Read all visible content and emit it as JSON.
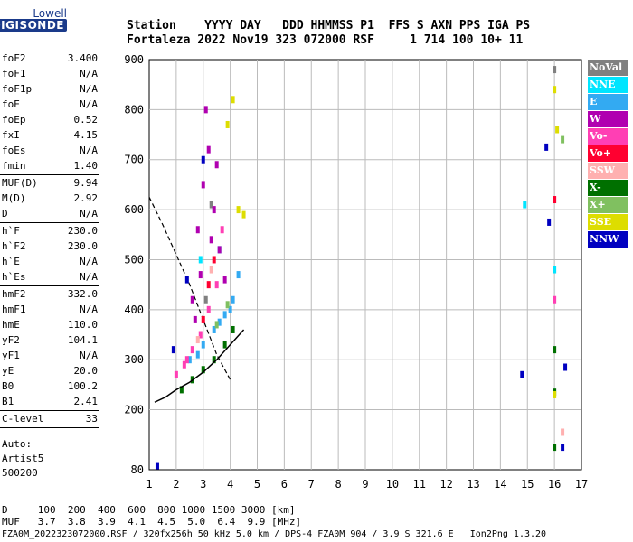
{
  "logo": {
    "line1": "Lowell",
    "line2": "DIGISONDE"
  },
  "header": {
    "line1": "Station    YYYY DAY   DDD HHMMSS P1  FFS S AXN PPS IGA PS",
    "line2": "Fortaleza 2022 Nov19 323 072000 RSF     1 714 100 10+ 11"
  },
  "params": [
    {
      "items": [
        {
          "k": "foF2",
          "v": "3.400"
        },
        {
          "k": "foF1",
          "v": "N/A"
        },
        {
          "k": "foF1p",
          "v": "N/A"
        },
        {
          "k": "foE",
          "v": "N/A"
        },
        {
          "k": "foEp",
          "v": "0.52"
        },
        {
          "k": "fxI",
          "v": "4.15"
        },
        {
          "k": "foEs",
          "v": "N/A"
        },
        {
          "k": "fmin",
          "v": "1.40"
        }
      ]
    },
    {
      "items": [
        {
          "k": "MUF(D)",
          "v": "9.94"
        },
        {
          "k": "M(D)",
          "v": "2.92"
        },
        {
          "k": "D",
          "v": "N/A"
        }
      ]
    },
    {
      "items": [
        {
          "k": "h`F",
          "v": "230.0"
        },
        {
          "k": "h`F2",
          "v": "230.0"
        },
        {
          "k": "h`E",
          "v": "N/A"
        },
        {
          "k": "h`Es",
          "v": "N/A"
        }
      ]
    },
    {
      "items": [
        {
          "k": "hmF2",
          "v": "332.0"
        },
        {
          "k": "hmF1",
          "v": "N/A"
        },
        {
          "k": "hmE",
          "v": "110.0"
        },
        {
          "k": "yF2",
          "v": "104.1"
        },
        {
          "k": "yF1",
          "v": "N/A"
        },
        {
          "k": "yE",
          "v": "20.0"
        },
        {
          "k": "B0",
          "v": "100.2"
        },
        {
          "k": "B1",
          "v": "2.41"
        }
      ]
    },
    {
      "items": [
        {
          "k": "C-level",
          "v": "33"
        }
      ]
    }
  ],
  "footer_info": {
    "line1": "Auto:",
    "line2": "Artist5",
    "line3": "500200"
  },
  "bottom_table": {
    "line1": "D     100  200  400  600  800 1000 1500 3000 [km]",
    "line2": "MUF   3.7  3.8  3.9  4.1  4.5  5.0  6.4  9.9 [MHz]"
  },
  "footer": "FZA0M_2022323072000.RSF / 320fx256h 50 kHz 5.0 km / DPS-4 FZA0M 904 / 3.9 S 321.6 E   Ion2Png 1.3.20",
  "legend": [
    {
      "label": "NoVal",
      "color": "#808080"
    },
    {
      "label": "NNE",
      "color": "#00e5ff"
    },
    {
      "label": "E",
      "color": "#33aaf2"
    },
    {
      "label": "W",
      "color": "#b000b0"
    },
    {
      "label": "Vo-",
      "color": "#ff3fb4"
    },
    {
      "label": "Vo+",
      "color": "#ff0030"
    },
    {
      "label": "SSW",
      "color": "#ffb0b0"
    },
    {
      "label": "X-",
      "color": "#007000"
    },
    {
      "label": "X+",
      "color": "#80c060"
    },
    {
      "label": "SSE",
      "color": "#dddd00"
    },
    {
      "label": "NNW",
      "color": "#0000c0"
    }
  ],
  "chart_data": {
    "type": "scatter",
    "xlim": [
      1,
      17
    ],
    "ylim": [
      80,
      900
    ],
    "x_ticks": [
      1,
      2,
      3,
      4,
      5,
      6,
      7,
      8,
      9,
      10,
      11,
      12,
      13,
      14,
      15,
      16,
      17
    ],
    "y_ticks": [
      80,
      200,
      300,
      400,
      500,
      600,
      700,
      800,
      900
    ],
    "grid": true,
    "legend_position": "right",
    "series": [
      {
        "name": "NoVal",
        "color": "#808080",
        "points": [
          [
            3.1,
            420
          ],
          [
            3.3,
            610
          ],
          [
            16.0,
            880
          ]
        ]
      },
      {
        "name": "NNE",
        "color": "#00e5ff",
        "points": [
          [
            2.9,
            500
          ],
          [
            3.6,
            520
          ],
          [
            14.9,
            610
          ],
          [
            16.0,
            480
          ]
        ]
      },
      {
        "name": "E",
        "color": "#33aaf2",
        "points": [
          [
            2.5,
            300
          ],
          [
            3.0,
            330
          ],
          [
            3.4,
            360
          ],
          [
            3.8,
            390
          ],
          [
            4.1,
            420
          ],
          [
            4.3,
            470
          ],
          [
            2.8,
            310
          ],
          [
            3.6,
            375
          ],
          [
            4.0,
            400
          ]
        ]
      },
      {
        "name": "W",
        "color": "#b000b0",
        "points": [
          [
            2.6,
            420
          ],
          [
            2.8,
            560
          ],
          [
            3.0,
            650
          ],
          [
            3.2,
            720
          ],
          [
            3.4,
            600
          ],
          [
            3.6,
            520
          ],
          [
            3.8,
            460
          ],
          [
            3.1,
            800
          ],
          [
            2.9,
            470
          ],
          [
            3.5,
            690
          ],
          [
            2.7,
            380
          ],
          [
            3.3,
            540
          ]
        ]
      },
      {
        "name": "Vo-",
        "color": "#ff3fb4",
        "points": [
          [
            2.0,
            270
          ],
          [
            2.3,
            290
          ],
          [
            2.6,
            320
          ],
          [
            2.9,
            350
          ],
          [
            3.2,
            400
          ],
          [
            3.5,
            450
          ],
          [
            3.7,
            560
          ],
          [
            2.4,
            300
          ],
          [
            16.0,
            420
          ]
        ]
      },
      {
        "name": "Vo+",
        "color": "#ff0030",
        "points": [
          [
            3.2,
            450
          ],
          [
            3.4,
            500
          ],
          [
            3.0,
            380
          ],
          [
            16.0,
            620
          ]
        ]
      },
      {
        "name": "SSW",
        "color": "#ffb0b0",
        "points": [
          [
            2.8,
            340
          ],
          [
            3.3,
            480
          ],
          [
            16.3,
            155
          ]
        ]
      },
      {
        "name": "X-",
        "color": "#007000",
        "points": [
          [
            2.2,
            240
          ],
          [
            2.6,
            260
          ],
          [
            3.0,
            280
          ],
          [
            3.4,
            300
          ],
          [
            3.8,
            330
          ],
          [
            4.1,
            360
          ],
          [
            16.0,
            320
          ],
          [
            16.0,
            235
          ],
          [
            16.0,
            125
          ]
        ]
      },
      {
        "name": "X+",
        "color": "#80c060",
        "points": [
          [
            3.5,
            370
          ],
          [
            3.9,
            410
          ],
          [
            16.3,
            740
          ]
        ]
      },
      {
        "name": "SSE",
        "color": "#dddd00",
        "points": [
          [
            3.9,
            770
          ],
          [
            4.1,
            820
          ],
          [
            4.3,
            600
          ],
          [
            4.5,
            590
          ],
          [
            16.0,
            840
          ],
          [
            16.1,
            760
          ],
          [
            16.0,
            230
          ]
        ]
      },
      {
        "name": "NNW",
        "color": "#0000c0",
        "points": [
          [
            1.3,
            88
          ],
          [
            1.9,
            320
          ],
          [
            2.4,
            460
          ],
          [
            3.0,
            700
          ],
          [
            15.7,
            725
          ],
          [
            15.8,
            575
          ],
          [
            16.4,
            285
          ],
          [
            16.3,
            125
          ],
          [
            14.8,
            270
          ]
        ]
      }
    ],
    "dashed_curve": [
      [
        1,
        625
      ],
      [
        1.5,
        570
      ],
      [
        2.0,
        510
      ],
      [
        2.5,
        450
      ],
      [
        3.0,
        380
      ],
      [
        3.5,
        310
      ],
      [
        4.0,
        260
      ]
    ],
    "solid_curve": [
      [
        1.2,
        215
      ],
      [
        1.6,
        225
      ],
      [
        2.0,
        240
      ],
      [
        2.5,
        255
      ],
      [
        3.0,
        275
      ],
      [
        3.5,
        300
      ],
      [
        4.0,
        330
      ],
      [
        4.5,
        360
      ]
    ]
  }
}
